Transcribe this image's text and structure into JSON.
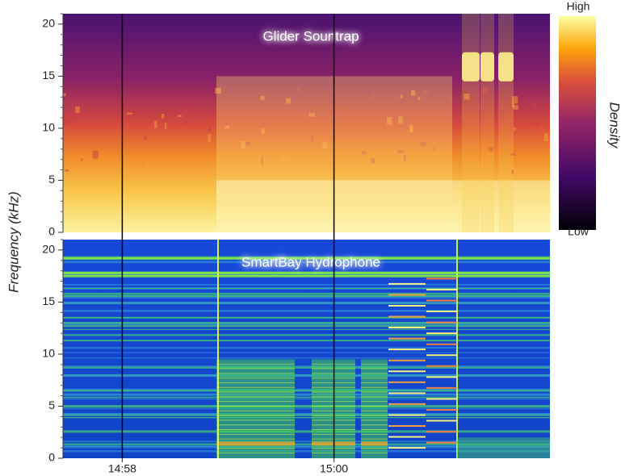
{
  "chart_data": [
    {
      "type": "spectrogram",
      "title": "Glider Sountrap",
      "colormap": "inferno",
      "ylim": [
        0,
        21
      ],
      "yticks": [
        0,
        5,
        10,
        15,
        20
      ]
    },
    {
      "type": "spectrogram",
      "title": "SmartBay Hydrophone",
      "colormap": "jet",
      "ylim": [
        0,
        21
      ],
      "yticks": [
        0,
        5,
        10,
        15,
        20
      ],
      "xlim": [
        897.44,
        902.04
      ],
      "xticks": [
        {
          "value": 898,
          "label": "14:58"
        },
        {
          "value": 900,
          "label": "15:00"
        }
      ]
    }
  ],
  "y_label": "Frequency (kHz)",
  "colorbar": {
    "label": "Density",
    "high": "High",
    "low": "Low"
  }
}
